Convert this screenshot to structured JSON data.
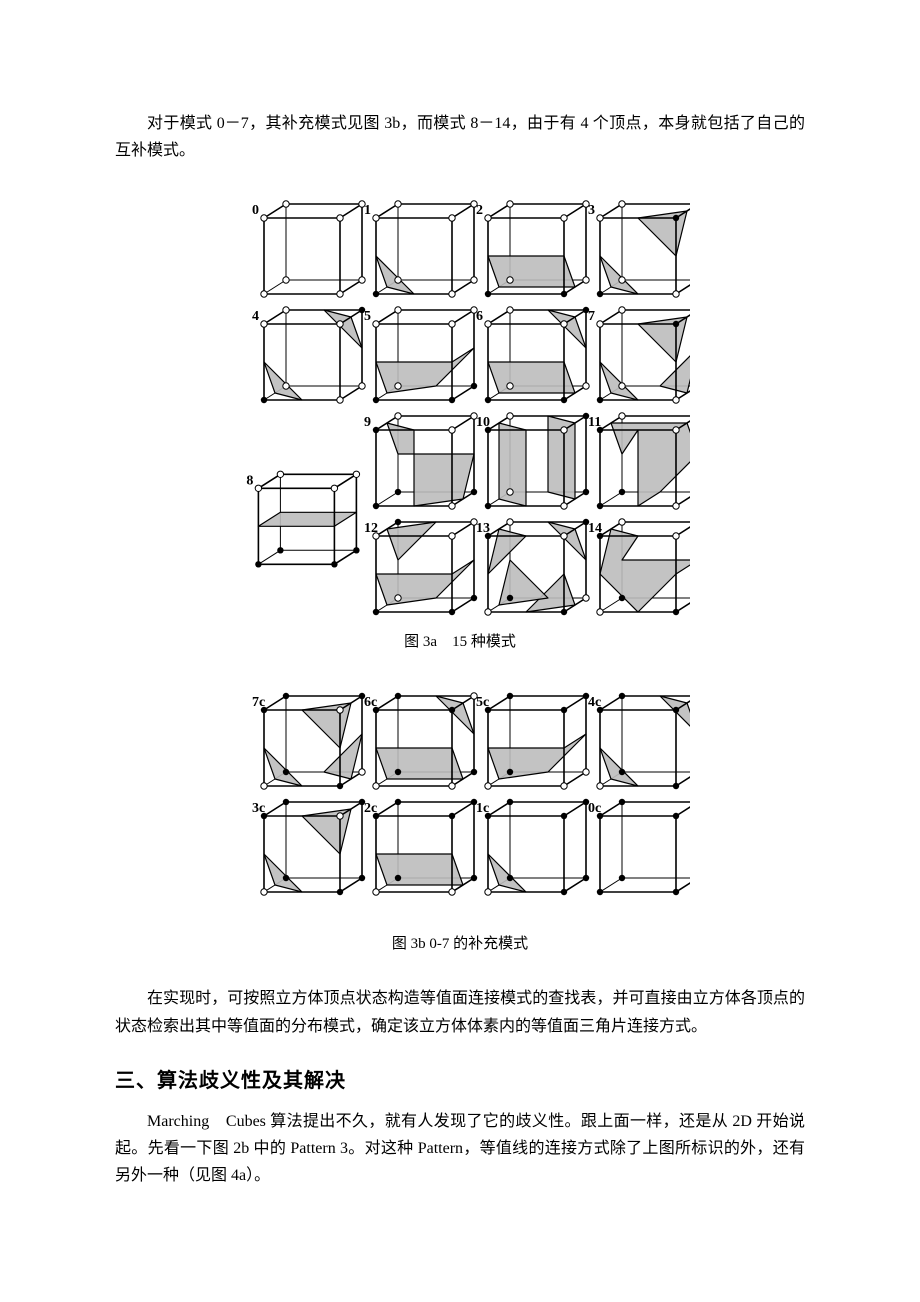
{
  "para1": "对于模式 0－7，其补充模式见图 3b，而模式 8－14，由于有 4 个顶点，本身就包括了自己的互补模式。",
  "fig3a": {
    "caption": "图 3a　15 种模式",
    "size_w": 460,
    "size_h": 430,
    "cell": 76,
    "depth_dx": 22,
    "depth_dy": -14,
    "vtx_r": 3.2,
    "label_fontsize": 14,
    "bg": "#ffffff",
    "shade": "#bdbdbd",
    "cubes": [
      {
        "label": "0",
        "row": 0,
        "col": 0,
        "filled": [],
        "tris": []
      },
      {
        "label": "1",
        "row": 0,
        "col": 1,
        "filled": [
          "FBL"
        ],
        "tris": [
          [
            "E_FTL_FBL",
            "E_FBL_FBR",
            "E_FBL_BBL"
          ]
        ]
      },
      {
        "label": "2",
        "row": 0,
        "col": 2,
        "filled": [
          "FBL",
          "FBR"
        ],
        "tris": [
          [
            "E_FTL_FBL",
            "E_FTR_FBR",
            "E_FBR_BBR",
            "E_FBL_BBL"
          ]
        ]
      },
      {
        "label": "3",
        "row": 0,
        "col": 3,
        "filled": [
          "FBL",
          "FTR"
        ],
        "tris": [
          [
            "E_FTL_FBL",
            "E_FBL_FBR",
            "E_FBL_BBL"
          ],
          [
            "E_FTL_FTR",
            "E_FTR_BTR",
            "E_FTR_FBR"
          ]
        ]
      },
      {
        "label": "4",
        "row": 1,
        "col": 0,
        "filled": [
          "FBL",
          "BTR"
        ],
        "tris": [
          [
            "E_FTL_FBL",
            "E_FBL_FBR",
            "E_FBL_BBL"
          ],
          [
            "E_FTR_BTR",
            "E_BTR_BBR",
            "E_BTL_BTR"
          ]
        ]
      },
      {
        "label": "5",
        "row": 1,
        "col": 1,
        "filled": [
          "FBL",
          "FBR",
          "BBR"
        ],
        "tris": [
          [
            "E_FTL_FBL",
            "E_FBL_BBL",
            "E_BBL_BBR",
            "E_BTR_BBR",
            "E_FTR_FBR"
          ]
        ]
      },
      {
        "label": "6",
        "row": 1,
        "col": 2,
        "filled": [
          "FBL",
          "FBR",
          "BTR"
        ],
        "tris": [
          [
            "E_FTL_FBL",
            "E_FTR_FBR",
            "E_FBR_BBR",
            "E_FBL_BBL"
          ],
          [
            "E_FTR_BTR",
            "E_BTR_BBR",
            "E_BTL_BTR"
          ]
        ]
      },
      {
        "label": "7",
        "row": 1,
        "col": 3,
        "filled": [
          "FBL",
          "FTR",
          "BBR"
        ],
        "tris": [
          [
            "E_FTL_FBL",
            "E_FBL_FBR",
            "E_FBL_BBL"
          ],
          [
            "E_FTL_FTR",
            "E_FTR_BTR",
            "E_FTR_FBR"
          ],
          [
            "E_FBR_BBR",
            "E_BTR_BBR",
            "E_BBL_BBR"
          ]
        ]
      },
      {
        "label": "8",
        "row": 2.55,
        "col": -0.05,
        "filled": [
          "FBL",
          "FBR",
          "BBL",
          "BBR"
        ],
        "tris": [
          [
            "E_FTL_FBL",
            "E_FTR_FBR",
            "E_BTR_BBR",
            "E_BTL_BBL"
          ]
        ]
      },
      {
        "label": "9",
        "row": 2,
        "col": 1,
        "filled": [
          "FTL",
          "FBL",
          "BBL",
          "BBR"
        ],
        "tris": [
          [
            "E_FTL_FTR",
            "E_FTL_BTL",
            "E_BTL_BBL",
            "E_BTR_BBR",
            "E_FBR_BBR",
            "E_FBL_FBR"
          ]
        ]
      },
      {
        "label": "10",
        "row": 2,
        "col": 2,
        "filled": [
          "FTL",
          "FBL",
          "BTR",
          "BBR"
        ],
        "tris": [
          [
            "E_FTL_FTR",
            "E_FBL_FBR",
            "E_FBL_BBL",
            "E_FTL_BTL"
          ],
          [
            "E_FTR_BTR",
            "E_BTL_BTR",
            "E_BBL_BBR",
            "E_FBR_BBR"
          ]
        ]
      },
      {
        "label": "11",
        "row": 2,
        "col": 3,
        "filled": [
          "FTL",
          "FBL",
          "BBL",
          "BTR"
        ],
        "tris": [
          [
            "E_FTL_FTR",
            "E_FBL_FBR",
            "E_BBL_BBR",
            "E_BTR_BBR",
            "E_FTR_BTR",
            "E_FTL_BTL",
            "E_BTL_BBL"
          ]
        ]
      },
      {
        "label": "12",
        "row": 3,
        "col": 1,
        "filled": [
          "FBL",
          "FBR",
          "BBR",
          "BTL"
        ],
        "tris": [
          [
            "E_FTL_FBL",
            "E_FTR_FBR",
            "E_BTR_BBR",
            "E_BBL_BBR",
            "E_FBL_BBL"
          ],
          [
            "E_FTL_BTL",
            "E_BTL_BTR",
            "E_BTL_BBL"
          ]
        ]
      },
      {
        "label": "13",
        "row": 3,
        "col": 2,
        "filled": [
          "FTL",
          "FBR",
          "BTR",
          "BBL"
        ],
        "tris": [
          [
            "E_FTL_FTR",
            "E_FTL_BTL",
            "E_FTL_FBL"
          ],
          [
            "E_FTR_FBR",
            "E_FBR_BBR",
            "E_FBL_FBR"
          ],
          [
            "E_FTR_BTR",
            "E_BTL_BTR",
            "E_BTR_BBR"
          ],
          [
            "E_FBL_BBL",
            "E_BTL_BBL",
            "E_BBL_BBR"
          ]
        ]
      },
      {
        "label": "14",
        "row": 3,
        "col": 3,
        "filled": [
          "FTL",
          "FBR",
          "BBL",
          "BBR"
        ],
        "tris": [
          [
            "E_FTL_FTR",
            "E_FTL_BTL",
            "E_FTL_FBL",
            "E_FBL_FBR",
            "E_FTR_FBR",
            "E_BTR_BBR",
            "E_BTL_BBL"
          ]
        ]
      }
    ]
  },
  "fig3b": {
    "caption": "图 3b 0-7 的补充模式",
    "size_w": 460,
    "size_h": 240,
    "cell": 76,
    "depth_dx": 22,
    "depth_dy": -14,
    "vtx_r": 3.2,
    "label_fontsize": 14,
    "bg": "#ffffff",
    "shade": "#bdbdbd",
    "cubes": [
      {
        "label": "7c",
        "row": 0,
        "col": 0,
        "filled": [
          "FTL",
          "FBR",
          "BTL",
          "BTR",
          "BBL"
        ],
        "tris": [
          [
            "E_FTL_FBL",
            "E_FBL_FBR",
            "E_FBL_BBL"
          ],
          [
            "E_FTL_FTR",
            "E_FTR_BTR",
            "E_FTR_FBR"
          ],
          [
            "E_FBR_BBR",
            "E_BTR_BBR",
            "E_BBL_BBR"
          ]
        ]
      },
      {
        "label": "6c",
        "row": 0,
        "col": 1,
        "filled": [
          "FTL",
          "FTR",
          "BTL",
          "BBL",
          "BBR"
        ],
        "tris": [
          [
            "E_FTL_FBL",
            "E_FTR_FBR",
            "E_FBR_BBR",
            "E_FBL_BBL"
          ],
          [
            "E_FTR_BTR",
            "E_BTR_BBR",
            "E_BTL_BTR"
          ]
        ]
      },
      {
        "label": "5c",
        "row": 0,
        "col": 2,
        "filled": [
          "FTL",
          "FTR",
          "BTL",
          "BTR",
          "BBL"
        ],
        "tris": [
          [
            "E_FTL_FBL",
            "E_FBL_BBL",
            "E_BBL_BBR",
            "E_BTR_BBR",
            "E_FTR_FBR"
          ]
        ]
      },
      {
        "label": "4c",
        "row": 0,
        "col": 3,
        "filled": [
          "FTL",
          "FTR",
          "FBR",
          "BTL",
          "BBL",
          "BBR"
        ],
        "tris": [
          [
            "E_FTL_FBL",
            "E_FBL_FBR",
            "E_FBL_BBL"
          ],
          [
            "E_FTR_BTR",
            "E_BTR_BBR",
            "E_BTL_BTR"
          ]
        ]
      },
      {
        "label": "3c",
        "row": 1,
        "col": 0,
        "filled": [
          "FTL",
          "FBR",
          "BTL",
          "BTR",
          "BBL",
          "BBR"
        ],
        "tris": [
          [
            "E_FTL_FBL",
            "E_FBL_FBR",
            "E_FBL_BBL"
          ],
          [
            "E_FTL_FTR",
            "E_FTR_BTR",
            "E_FTR_FBR"
          ]
        ]
      },
      {
        "label": "2c",
        "row": 1,
        "col": 1,
        "filled": [
          "FTL",
          "FTR",
          "BTL",
          "BTR",
          "BBL",
          "BBR"
        ],
        "tris": [
          [
            "E_FTL_FBL",
            "E_FTR_FBR",
            "E_FBR_BBR",
            "E_FBL_BBL"
          ]
        ]
      },
      {
        "label": "1c",
        "row": 1,
        "col": 2,
        "filled": [
          "FTL",
          "FTR",
          "FBR",
          "BTL",
          "BTR",
          "BBL",
          "BBR"
        ],
        "tris": [
          [
            "E_FTL_FBL",
            "E_FBL_FBR",
            "E_FBL_BBL"
          ]
        ]
      },
      {
        "label": "0c",
        "row": 1,
        "col": 3,
        "filled": [
          "FTL",
          "FTR",
          "FBL",
          "FBR",
          "BTL",
          "BTR",
          "BBL",
          "BBR"
        ],
        "tris": []
      }
    ]
  },
  "para2": "在实现时，可按照立方体顶点状态构造等值面连接模式的查找表，并可直接由立方体各顶点的状态检索出其中等值面的分布模式，确定该立方体体素内的等值面三角片连接方式。",
  "heading3": "三、算法歧义性及其解决",
  "para3": "Marching　Cubes 算法提出不久，就有人发现了它的歧义性。跟上面一样，还是从 2D 开始说起。先看一下图 2b 中的 Pattern 3。对这种 Pattern，等值线的连接方式除了上图所标识的外，还有另外一种（见图 4a）。"
}
